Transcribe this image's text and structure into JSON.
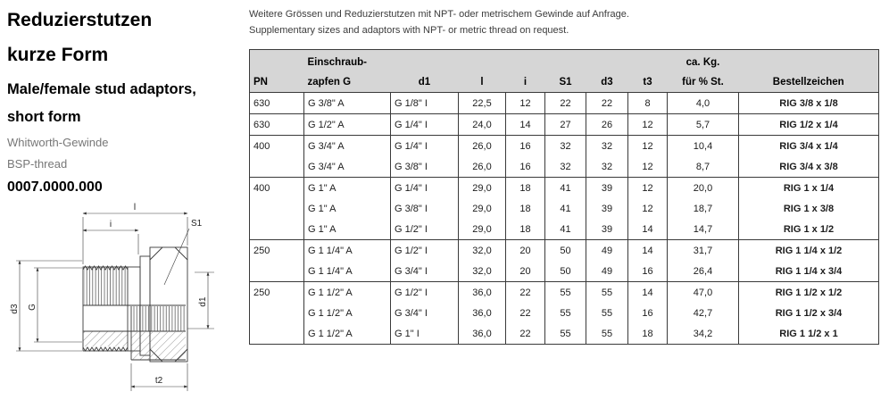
{
  "product": {
    "title_de_line1": "Reduzierstutzen",
    "title_de_line2": "kurze Form",
    "title_en_line1": "Male/female stud adaptors,",
    "title_en_line2": "short form",
    "thread_de": "Whitworth-Gewinde",
    "thread_en": "BSP-thread",
    "code": "0007.0000.000"
  },
  "notes": {
    "de": "Weitere Grössen und Reduzierstutzen mit NPT- oder metrischem Gewinde auf Anfrage.",
    "en": "Supplementary sizes and adaptors with NPT- or metric thread on request."
  },
  "drawing": {
    "labels": {
      "l": "l",
      "i": "i",
      "s1": "S1",
      "d3": "d3",
      "g": "G",
      "d1": "d1",
      "t2": "t2"
    }
  },
  "table": {
    "columns": [
      {
        "key": "pn",
        "top": "",
        "label": "PN"
      },
      {
        "key": "g",
        "top": "Einschraub-",
        "label": "zapfen G"
      },
      {
        "key": "d1",
        "top": "",
        "label": "d1"
      },
      {
        "key": "l",
        "top": "",
        "label": "l"
      },
      {
        "key": "i",
        "top": "",
        "label": "i"
      },
      {
        "key": "s1",
        "top": "",
        "label": "S1"
      },
      {
        "key": "d3",
        "top": "",
        "label": "d3"
      },
      {
        "key": "t3",
        "top": "",
        "label": "t3"
      },
      {
        "key": "kg",
        "top": "ca. Kg.",
        "label": "für % St."
      },
      {
        "key": "code",
        "top": "",
        "label": "Bestellzeichen"
      }
    ],
    "rows": [
      {
        "group_start": true,
        "values": [
          "630",
          "G 3/8\" A",
          "G 1/8\" I",
          "22,5",
          "12",
          "22",
          "22",
          "8",
          "4,0",
          "RIG 3/8 x 1/8"
        ]
      },
      {
        "group_start": true,
        "values": [
          "630",
          "G 1/2\" A",
          "G 1/4\" I",
          "24,0",
          "14",
          "27",
          "26",
          "12",
          "5,7",
          "RIG 1/2 x 1/4"
        ]
      },
      {
        "group_start": true,
        "values": [
          "400",
          "G 3/4\" A",
          "G 1/4\" I",
          "26,0",
          "16",
          "32",
          "32",
          "12",
          "10,4",
          "RIG 3/4 x 1/4"
        ]
      },
      {
        "group_start": false,
        "values": [
          "",
          "G 3/4\" A",
          "G 3/8\" I",
          "26,0",
          "16",
          "32",
          "32",
          "12",
          "8,7",
          "RIG 3/4 x 3/8"
        ]
      },
      {
        "group_start": true,
        "values": [
          "400",
          "G 1\" A",
          "G 1/4\" I",
          "29,0",
          "18",
          "41",
          "39",
          "12",
          "20,0",
          "RIG 1 x 1/4"
        ]
      },
      {
        "group_start": false,
        "values": [
          "",
          "G 1\" A",
          "G 3/8\" I",
          "29,0",
          "18",
          "41",
          "39",
          "12",
          "18,7",
          "RIG 1 x 3/8"
        ]
      },
      {
        "group_start": false,
        "values": [
          "",
          "G 1\" A",
          "G 1/2\" I",
          "29,0",
          "18",
          "41",
          "39",
          "14",
          "14,7",
          "RIG 1 x 1/2"
        ]
      },
      {
        "group_start": true,
        "values": [
          "250",
          "G 1 1/4\" A",
          "G 1/2\" I",
          "32,0",
          "20",
          "50",
          "49",
          "14",
          "31,7",
          "RIG 1 1/4 x 1/2"
        ]
      },
      {
        "group_start": false,
        "values": [
          "",
          "G 1 1/4\" A",
          "G 3/4\" I",
          "32,0",
          "20",
          "50",
          "49",
          "16",
          "26,4",
          "RIG 1 1/4 x 3/4"
        ]
      },
      {
        "group_start": true,
        "values": [
          "250",
          "G 1 1/2\" A",
          "G 1/2\" I",
          "36,0",
          "22",
          "55",
          "55",
          "14",
          "47,0",
          "RIG 1 1/2 x 1/2"
        ]
      },
      {
        "group_start": false,
        "values": [
          "",
          "G 1 1/2\" A",
          "G 3/4\" I",
          "36,0",
          "22",
          "55",
          "55",
          "16",
          "42,7",
          "RIG 1 1/2 x 3/4"
        ]
      },
      {
        "group_start": false,
        "values": [
          "",
          "G 1 1/2\" A",
          "G 1\" I",
          "36,0",
          "22",
          "55",
          "55",
          "18",
          "34,2",
          "RIG 1 1/2 x 1"
        ]
      }
    ]
  }
}
